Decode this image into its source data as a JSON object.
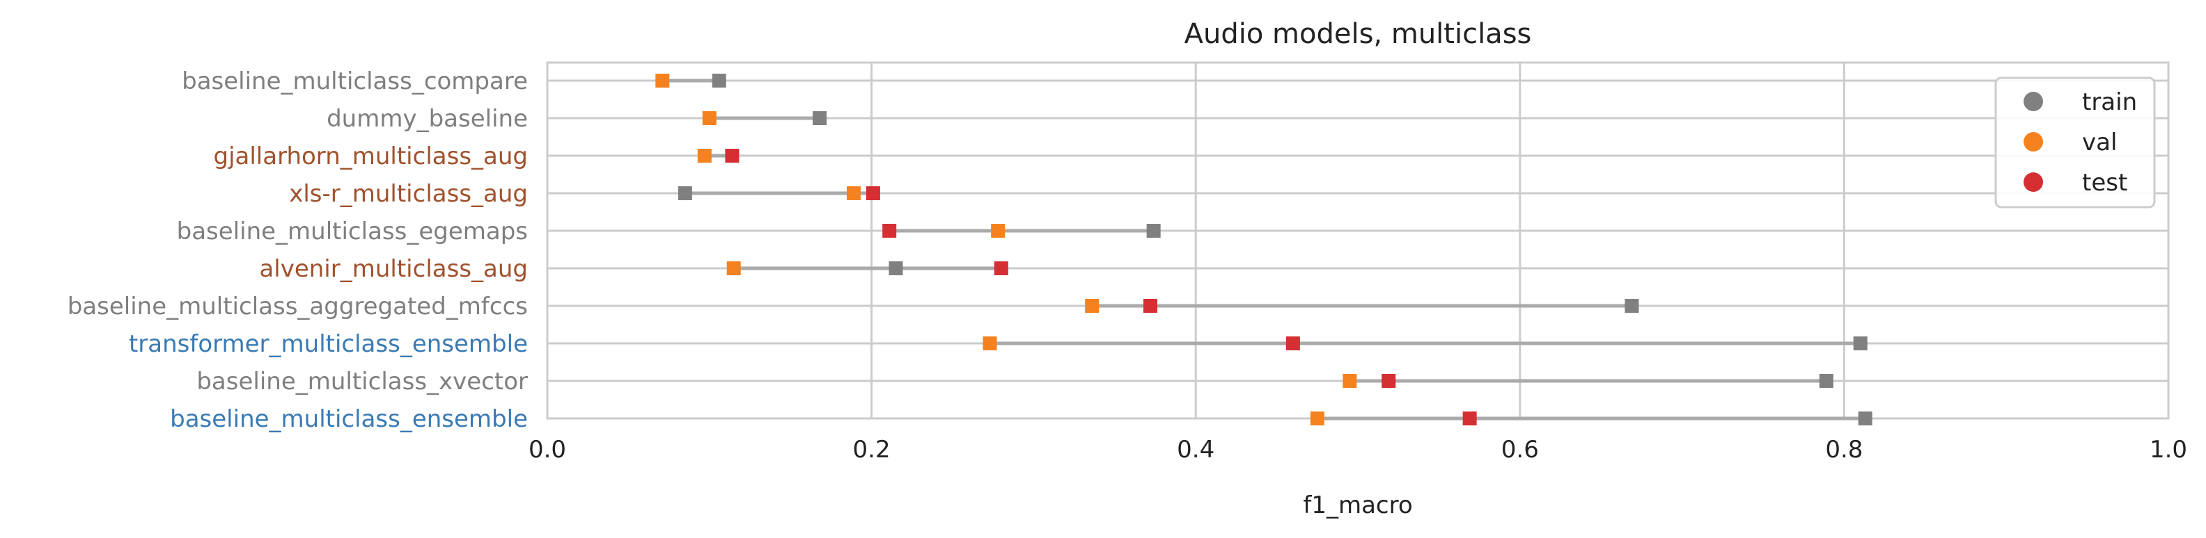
{
  "chart_data": {
    "type": "scatter",
    "title": "Audio models, multiclass",
    "xlabel": "f1_macro",
    "ylabel": "",
    "xlim": [
      0.0,
      1.0
    ],
    "xticks": [
      "0.0",
      "0.2",
      "0.4",
      "0.6",
      "0.8",
      "1.0"
    ],
    "grid": true,
    "legend_position": "top-right",
    "series": [
      {
        "name": "train",
        "color": "#808080"
      },
      {
        "name": "val",
        "color": "#f5821f"
      },
      {
        "name": "test",
        "color": "#d62f33"
      }
    ],
    "categories": [
      {
        "label": "baseline_multiclass_compare",
        "label_color": "#7f7f7f",
        "train": 0.106,
        "val": 0.071,
        "test": null
      },
      {
        "label": "dummy_baseline",
        "label_color": "#7f7f7f",
        "train": 0.168,
        "val": 0.1,
        "test": null
      },
      {
        "label": "gjallarhorn_multiclass_aug",
        "label_color": "#a0522d",
        "train": null,
        "val": 0.097,
        "test": 0.114
      },
      {
        "label": "xls-r_multiclass_aug",
        "label_color": "#a0522d",
        "train": 0.085,
        "val": 0.189,
        "test": 0.201
      },
      {
        "label": "baseline_multiclass_egemaps",
        "label_color": "#7f7f7f",
        "train": 0.374,
        "val": 0.278,
        "test": 0.211
      },
      {
        "label": "alvenir_multiclass_aug",
        "label_color": "#a0522d",
        "train": 0.215,
        "val": 0.115,
        "test": 0.28
      },
      {
        "label": "baseline_multiclass_aggregated_mfccs",
        "label_color": "#7f7f7f",
        "train": 0.669,
        "val": 0.336,
        "test": 0.372
      },
      {
        "label": "transformer_multiclass_ensemble",
        "label_color": "#3a7ab3",
        "train": 0.81,
        "val": 0.273,
        "test": 0.46
      },
      {
        "label": "baseline_multiclass_xvector",
        "label_color": "#7f7f7f",
        "train": 0.789,
        "val": 0.495,
        "test": 0.519
      },
      {
        "label": "baseline_multiclass_ensemble",
        "label_color": "#3a7ab3",
        "train": 0.813,
        "val": 0.475,
        "test": 0.569
      }
    ]
  }
}
